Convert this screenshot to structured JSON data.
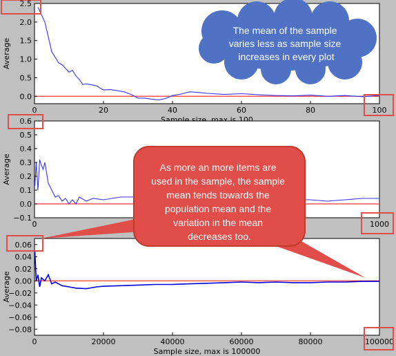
{
  "chart_data": [
    {
      "type": "line",
      "xlabel": "Sample size, max is 100",
      "ylabel": "Average",
      "xlim": [
        0,
        100
      ],
      "ylim": [
        -0.2,
        2.5
      ],
      "xticks": [
        "0",
        "20",
        "40",
        "60",
        "80",
        "100"
      ],
      "yticks": [
        "0.0",
        "0.5",
        "1.0",
        "1.5",
        "2.0",
        "2.5"
      ],
      "grid": false,
      "series": [
        {
          "color": "#3333ff",
          "x": [
            1,
            2,
            3,
            4,
            5,
            6,
            7,
            8,
            9,
            10,
            11,
            12,
            13,
            14,
            15,
            16,
            17,
            18,
            19,
            20,
            22,
            24,
            26,
            28,
            30,
            32,
            34,
            36,
            38,
            40,
            42,
            45,
            48,
            50,
            55,
            60,
            65,
            70,
            75,
            80,
            85,
            90,
            95,
            100
          ],
          "y": [
            2.4,
            2.2,
            2.0,
            1.6,
            1.2,
            1.05,
            0.9,
            0.85,
            0.75,
            0.65,
            0.7,
            0.55,
            0.45,
            0.32,
            0.33,
            0.32,
            0.3,
            0.28,
            0.22,
            0.17,
            0.18,
            0.15,
            0.12,
            0.05,
            -0.05,
            -0.05,
            -0.08,
            -0.1,
            -0.06,
            0.02,
            0.05,
            0.12,
            0.1,
            0.08,
            0.05,
            0.07,
            0.04,
            0.02,
            0.01,
            0.03,
            0.0,
            0.02,
            -0.01,
            0.02
          ]
        }
      ],
      "reference_line": {
        "y": 0,
        "color": "#ff3333"
      }
    },
    {
      "type": "line",
      "xlabel": "",
      "ylabel": "Average",
      "xlim": [
        0,
        1000
      ],
      "ylim": [
        -0.1,
        0.6
      ],
      "xticks": [
        "0",
        "1000"
      ],
      "yticks": [
        "−0.1",
        "0.0",
        "0.1",
        "0.2",
        "0.3",
        "0.4",
        "0.5",
        "0.6"
      ],
      "grid": false,
      "series": [
        {
          "color": "#3333ff",
          "x": [
            1,
            5,
            10,
            15,
            20,
            25,
            30,
            40,
            50,
            60,
            70,
            80,
            90,
            100,
            110,
            120,
            130,
            150,
            170,
            200,
            250,
            300,
            800,
            850,
            900,
            950,
            1000
          ],
          "y": [
            0.13,
            0.3,
            0.1,
            0.32,
            0.28,
            0.25,
            0.3,
            0.15,
            0.1,
            0.05,
            0.06,
            0.02,
            0.04,
            0.0,
            0.03,
            0.0,
            0.05,
            0.02,
            0.04,
            0.03,
            0.05,
            0.05,
            0.03,
            0.02,
            0.03,
            0.04,
            0.04
          ]
        }
      ],
      "reference_line": {
        "y": 0,
        "color": "#ff3333"
      }
    },
    {
      "type": "line",
      "xlabel": "Sample size, max is 100000",
      "ylabel": "Average",
      "xlim": [
        0,
        100000
      ],
      "ylim": [
        -0.09,
        0.07
      ],
      "xticks": [
        "0",
        "20000",
        "40000",
        "60000",
        "80000",
        "100000"
      ],
      "yticks": [
        "0.06",
        "0.04",
        "0.02",
        "0.00",
        "−0.02",
        "−0.04",
        "−0.06",
        "−0.08"
      ],
      "grid": false,
      "series": [
        {
          "color": "#0000dd",
          "x": [
            100,
            500,
            1000,
            1500,
            2000,
            3000,
            4000,
            5000,
            6000,
            8000,
            10000,
            12000,
            15000,
            18000,
            20000,
            25000,
            30000,
            35000,
            40000,
            45000,
            50000,
            55000,
            60000,
            65000,
            70000,
            75000,
            80000,
            85000,
            90000,
            95000,
            100000
          ],
          "y": [
            0.05,
            0.0,
            0.01,
            -0.01,
            0.005,
            0.0,
            0.01,
            -0.005,
            -0.002,
            -0.008,
            -0.01,
            -0.012,
            -0.013,
            -0.01,
            -0.009,
            -0.008,
            -0.007,
            -0.006,
            -0.006,
            -0.005,
            -0.004,
            -0.003,
            -0.002,
            -0.003,
            -0.002,
            -0.003,
            -0.003,
            -0.002,
            -0.002,
            -0.001,
            -0.001
          ]
        }
      ],
      "reference_line": {
        "y": 0,
        "color": "#ff3333"
      }
    }
  ],
  "callouts": {
    "cloud_text": "The mean of the sample varies less as sample size increases in every plot",
    "speech_text": "As more an more items are used in the sample, the sample mean tends towards the population mean and the variation in the mean decreases too."
  },
  "colors": {
    "cloud_fill": "#4f72c5",
    "callout_fill": "#e14d49",
    "highlight_stroke": "#e14d49",
    "speech_outline": "#c0392b"
  }
}
